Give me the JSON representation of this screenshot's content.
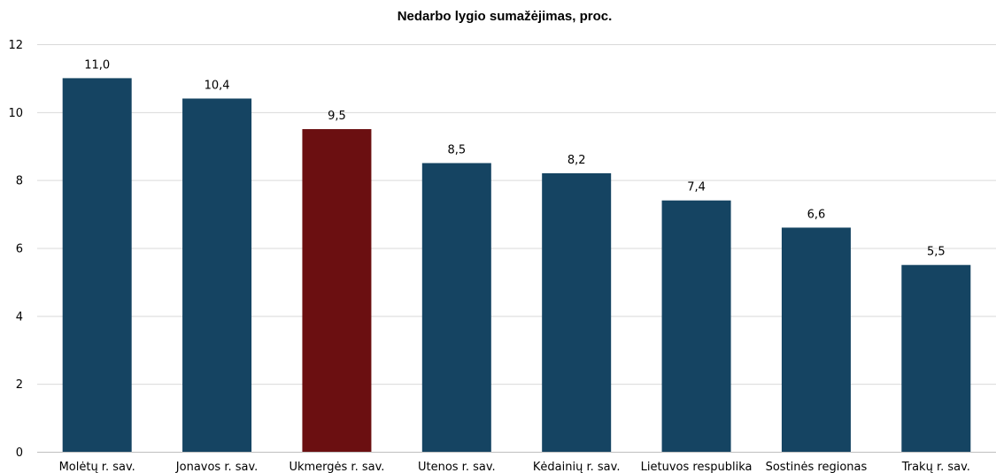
{
  "chart_data": {
    "type": "bar",
    "title": "Nedarbo lygio sumažėjimas, proc.",
    "xlabel": "",
    "ylabel": "",
    "ylim": [
      0,
      12
    ],
    "yticks": [
      0,
      2,
      4,
      6,
      8,
      10,
      12
    ],
    "grid": true,
    "categories": [
      "Molėtų r. sav.",
      "Jonavos r. sav.",
      "Ukmergės r. sav.",
      "Utenos r. sav.",
      "Kėdainių r. sav.",
      "Lietuvos respublika",
      "Sostinės regionas",
      "Trakų r. sav."
    ],
    "values": [
      11.0,
      10.4,
      9.5,
      8.5,
      8.2,
      7.4,
      6.6,
      5.5
    ],
    "value_labels": [
      "11,0",
      "10,4",
      "9,5",
      "8,5",
      "8,2",
      "7,4",
      "6,6",
      "5,5"
    ],
    "colors": {
      "default_bar": "#154462",
      "highlight_bar": "#6b0f11"
    },
    "highlight_category": "Ukmergės r. sav."
  }
}
